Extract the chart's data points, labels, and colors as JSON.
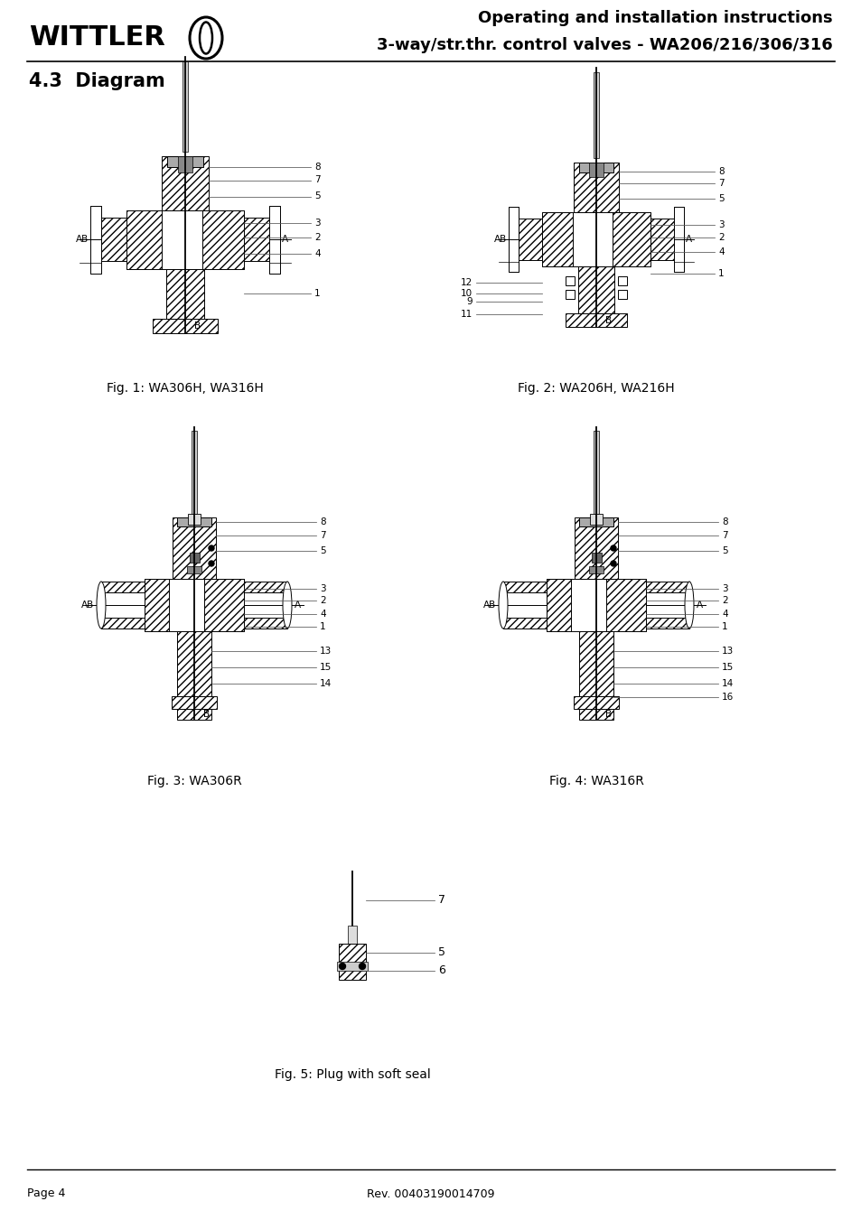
{
  "header_line1": "Operating and installation instructions",
  "header_line2": "3-way/str.thr. control valves - WA206/216/306/316",
  "logo_text": "WITTLER",
  "section_title": "4.3  Diagram",
  "fig1_caption": "Fig. 1: WA306H, WA316H",
  "fig2_caption": "Fig. 2: WA206H, WA216H",
  "fig3_caption": "Fig. 3: WA306R",
  "fig4_caption": "Fig. 4: WA316R",
  "fig5_caption": "Fig. 5: Plug with soft seal",
  "footer_left": "Page 4",
  "footer_center": "Rev. 00403190014709",
  "bg_color": "#ffffff",
  "label_fs": 7.5,
  "caption_fs": 10,
  "header_fs1": 13,
  "header_fs2": 13
}
